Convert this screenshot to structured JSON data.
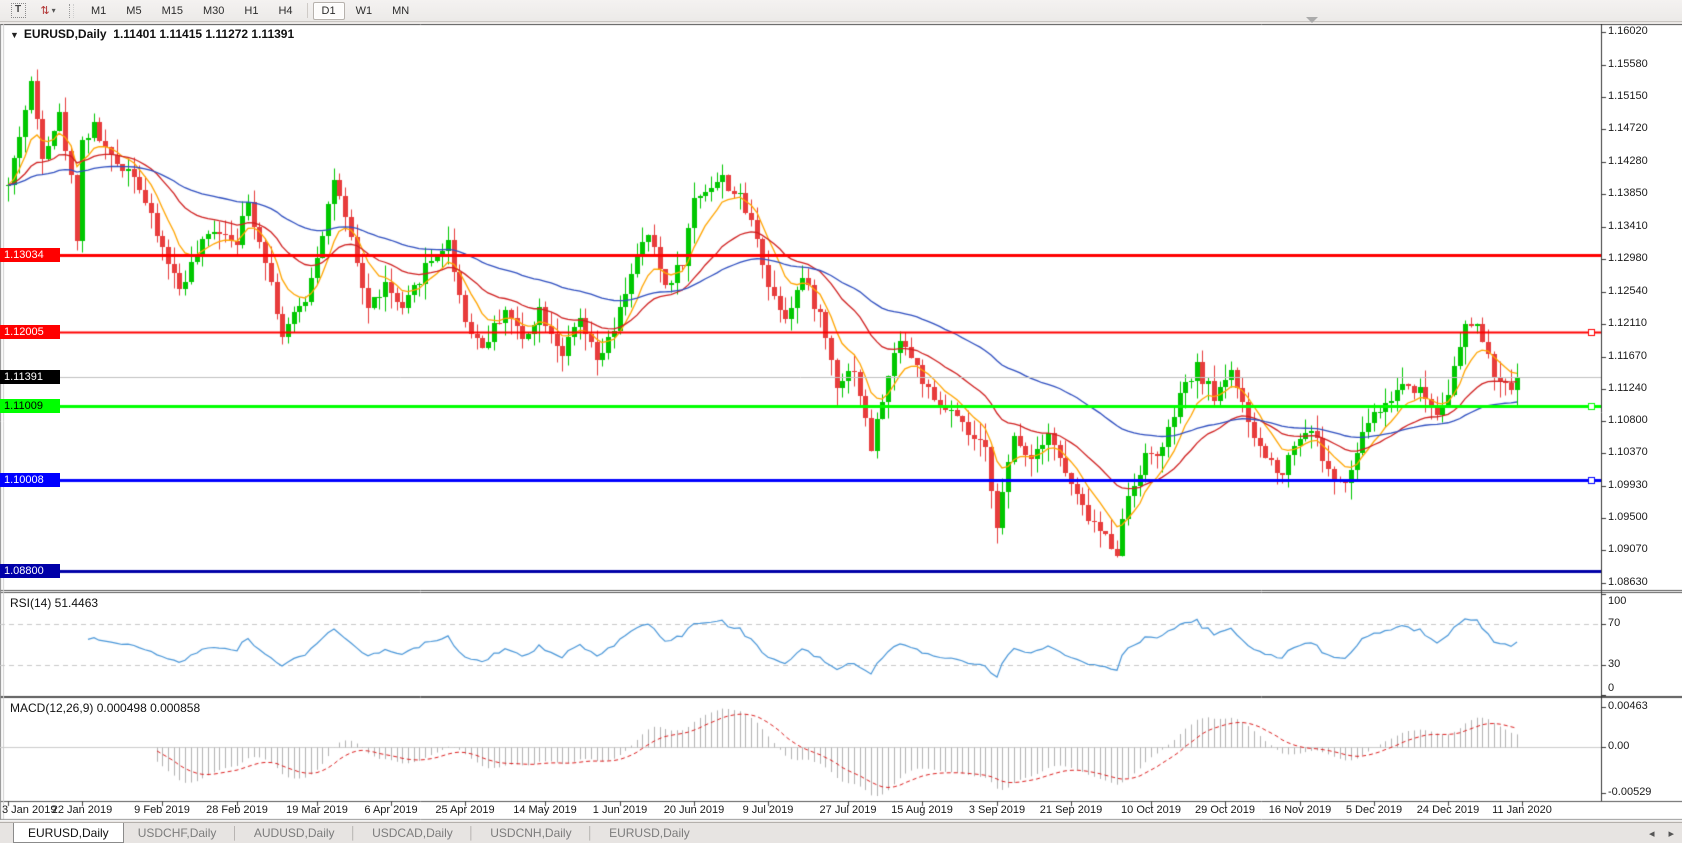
{
  "toolbar": {
    "text_tool": "T",
    "arrows_icon": "⇅",
    "caret_icon": "▾",
    "timeframes": [
      "M1",
      "M5",
      "M15",
      "M30",
      "H1",
      "H4",
      "D1",
      "W1",
      "MN"
    ],
    "active_timeframe": "D1"
  },
  "header": {
    "dropdown_icon": "▼",
    "symbol_label": "EURUSD,Daily",
    "ohlc": "1.11401 1.11415 1.11272 1.11391"
  },
  "price_axis": {
    "ticks": [
      "1.16020",
      "1.15580",
      "1.15150",
      "1.14720",
      "1.14280",
      "1.13850",
      "1.13410",
      "1.12980",
      "1.12540",
      "1.12110",
      "1.11670",
      "1.11240",
      "1.10800",
      "1.10370",
      "1.09930",
      "1.09500",
      "1.09070",
      "1.08630"
    ]
  },
  "levels": [
    {
      "label": "1.13034",
      "value": 1.13034,
      "color": "#ff0000",
      "text_color": "#ffffff",
      "line_width": 3,
      "handle": false
    },
    {
      "label": "1.12005",
      "value": 1.12005,
      "color": "#ff0000",
      "text_color": "#ffffff",
      "line_width": 2,
      "handle": true
    },
    {
      "label": "1.11009",
      "value": 1.11009,
      "color": "#00ff00",
      "text_color": "#000000",
      "line_width": 3,
      "handle": true
    },
    {
      "label": "1.10008",
      "value": 1.10008,
      "color": "#0000ff",
      "text_color": "#ffffff",
      "line_width": 3,
      "handle": true
    },
    {
      "label": "1.08800",
      "value": 1.088,
      "color": "#0000a8",
      "text_color": "#ffffff",
      "line_width": 3,
      "handle": false
    }
  ],
  "current_price": {
    "label": "1.11391",
    "value": 1.11391,
    "chip_bg": "#000000",
    "chip_text": "#ffffff",
    "line_color": "#c0c0c0"
  },
  "rsi": {
    "label": "RSI(14) 51.4463",
    "period": 14,
    "line_color": "#4a97d9",
    "level_labels": [
      "100",
      "70",
      "30",
      "0"
    ],
    "level_values": [
      100,
      70,
      30,
      0
    ],
    "dashed_levels": [
      70,
      30
    ]
  },
  "macd": {
    "label": "MACD(12,26,9) 0.000498 0.000858",
    "fast": 12,
    "slow": 26,
    "signal": 9,
    "hist_color": "#b2b2b2",
    "signal_color": "#dd2222",
    "scale_labels": [
      "0.00463",
      "0.00",
      "-0.00529"
    ],
    "scale_values": [
      0.00463,
      0,
      -0.00529
    ]
  },
  "date_axis": {
    "labels": [
      {
        "text": "3 Jan 2019",
        "i": 0
      },
      {
        "text": "22 Jan 2019",
        "i": 13
      },
      {
        "text": "9 Feb 2019",
        "i": 27
      },
      {
        "text": "28 Feb 2019",
        "i": 40
      },
      {
        "text": "19 Mar 2019",
        "i": 54
      },
      {
        "text": "6 Apr 2019",
        "i": 67
      },
      {
        "text": "25 Apr 2019",
        "i": 80
      },
      {
        "text": "14 May 2019",
        "i": 94
      },
      {
        "text": "1 Jun 2019",
        "i": 107
      },
      {
        "text": "20 Jun 2019",
        "i": 120
      },
      {
        "text": "9 Jul 2019",
        "i": 133
      },
      {
        "text": "27 Jul 2019",
        "i": 147
      },
      {
        "text": "15 Aug 2019",
        "i": 160
      },
      {
        "text": "3 Sep 2019",
        "i": 173
      },
      {
        "text": "21 Sep 2019",
        "i": 186
      },
      {
        "text": "10 Oct 2019",
        "i": 200
      },
      {
        "text": "29 Oct 2019",
        "i": 213
      },
      {
        "text": "16 Nov 2019",
        "i": 226
      },
      {
        "text": "5 Dec 2019",
        "i": 239
      },
      {
        "text": "24 Dec 2019",
        "i": 252
      },
      {
        "text": "11 Jan 2020",
        "i": 265
      }
    ]
  },
  "tabs": [
    {
      "label": "EURUSD,Daily",
      "active": true
    },
    {
      "label": "USDCHF,Daily",
      "active": false
    },
    {
      "label": "AUDUSD,Daily",
      "active": false
    },
    {
      "label": "USDCAD,Daily",
      "active": false
    },
    {
      "label": "USDCNH,Daily",
      "active": false
    },
    {
      "label": "EURUSD,Daily",
      "active": false
    }
  ],
  "tab_nav": {
    "prev": "◂",
    "next": "▸"
  },
  "chart_data": {
    "type": "candlestick",
    "symbol": "EURUSD",
    "timeframe": "Daily",
    "candle_count": 265,
    "last_close": 1.11391,
    "seed": 42,
    "ylim": [
      1.0863,
      1.1602
    ],
    "colors": {
      "up": "#00c800",
      "down": "#e83c3c"
    },
    "indicators": [
      {
        "type": "ema",
        "period": 8,
        "color": "#ffa500"
      },
      {
        "type": "ema",
        "period": 24,
        "color": "#d02020"
      },
      {
        "type": "ema",
        "period": 60,
        "color": "#2f4fc0"
      }
    ],
    "anchors": [
      [
        0,
        1.1395
      ],
      [
        2,
        1.1465
      ],
      [
        4,
        1.1532
      ],
      [
        6,
        1.144
      ],
      [
        9,
        1.149
      ],
      [
        11,
        1.1405
      ],
      [
        12,
        1.133
      ],
      [
        13,
        1.1455
      ],
      [
        15,
        1.1475
      ],
      [
        18,
        1.143
      ],
      [
        22,
        1.1415
      ],
      [
        26,
        1.133
      ],
      [
        30,
        1.1258
      ],
      [
        33,
        1.1305
      ],
      [
        36,
        1.134
      ],
      [
        40,
        1.1325
      ],
      [
        42,
        1.1372
      ],
      [
        45,
        1.13
      ],
      [
        48,
        1.1195
      ],
      [
        52,
        1.1245
      ],
      [
        55,
        1.1335
      ],
      [
        57,
        1.1405
      ],
      [
        60,
        1.132
      ],
      [
        63,
        1.1232
      ],
      [
        66,
        1.1262
      ],
      [
        69,
        1.1226
      ],
      [
        73,
        1.1288
      ],
      [
        77,
        1.132
      ],
      [
        80,
        1.1215
      ],
      [
        83,
        1.118
      ],
      [
        87,
        1.1232
      ],
      [
        90,
        1.119
      ],
      [
        93,
        1.123
      ],
      [
        97,
        1.1172
      ],
      [
        100,
        1.1215
      ],
      [
        103,
        1.116
      ],
      [
        106,
        1.12
      ],
      [
        109,
        1.1282
      ],
      [
        112,
        1.133
      ],
      [
        115,
        1.1262
      ],
      [
        118,
        1.1295
      ],
      [
        120,
        1.1378
      ],
      [
        122,
        1.1392
      ],
      [
        125,
        1.1405
      ],
      [
        128,
        1.1378
      ],
      [
        131,
        1.133
      ],
      [
        133,
        1.1262
      ],
      [
        136,
        1.1222
      ],
      [
        139,
        1.1272
      ],
      [
        142,
        1.1222
      ],
      [
        145,
        1.1132
      ],
      [
        148,
        1.1152
      ],
      [
        151,
        1.1045
      ],
      [
        153,
        1.111
      ],
      [
        156,
        1.1195
      ],
      [
        159,
        1.1152
      ],
      [
        162,
        1.1102
      ],
      [
        165,
        1.1092
      ],
      [
        168,
        1.1062
      ],
      [
        171,
        1.104
      ],
      [
        173,
        1.0945
      ],
      [
        176,
        1.1058
      ],
      [
        179,
        1.1032
      ],
      [
        182,
        1.1068
      ],
      [
        185,
        1.101
      ],
      [
        188,
        1.0962
      ],
      [
        191,
        1.0932
      ],
      [
        194,
        1.0908
      ],
      [
        196,
        1.0982
      ],
      [
        199,
        1.1032
      ],
      [
        202,
        1.1042
      ],
      [
        205,
        1.1112
      ],
      [
        208,
        1.1152
      ],
      [
        211,
        1.1112
      ],
      [
        214,
        1.1152
      ],
      [
        217,
        1.1072
      ],
      [
        220,
        1.1032
      ],
      [
        223,
        1.1012
      ],
      [
        225,
        1.1052
      ],
      [
        228,
        1.1072
      ],
      [
        231,
        1.1012
      ],
      [
        234,
        1.0992
      ],
      [
        238,
        1.1082
      ],
      [
        241,
        1.1102
      ],
      [
        244,
        1.1132
      ],
      [
        247,
        1.1122
      ],
      [
        250,
        1.1092
      ],
      [
        252,
        1.1122
      ],
      [
        255,
        1.1205
      ],
      [
        257,
        1.1212
      ],
      [
        259,
        1.1162
      ],
      [
        261,
        1.1128
      ],
      [
        263,
        1.1122
      ],
      [
        264,
        1.11391
      ]
    ]
  }
}
